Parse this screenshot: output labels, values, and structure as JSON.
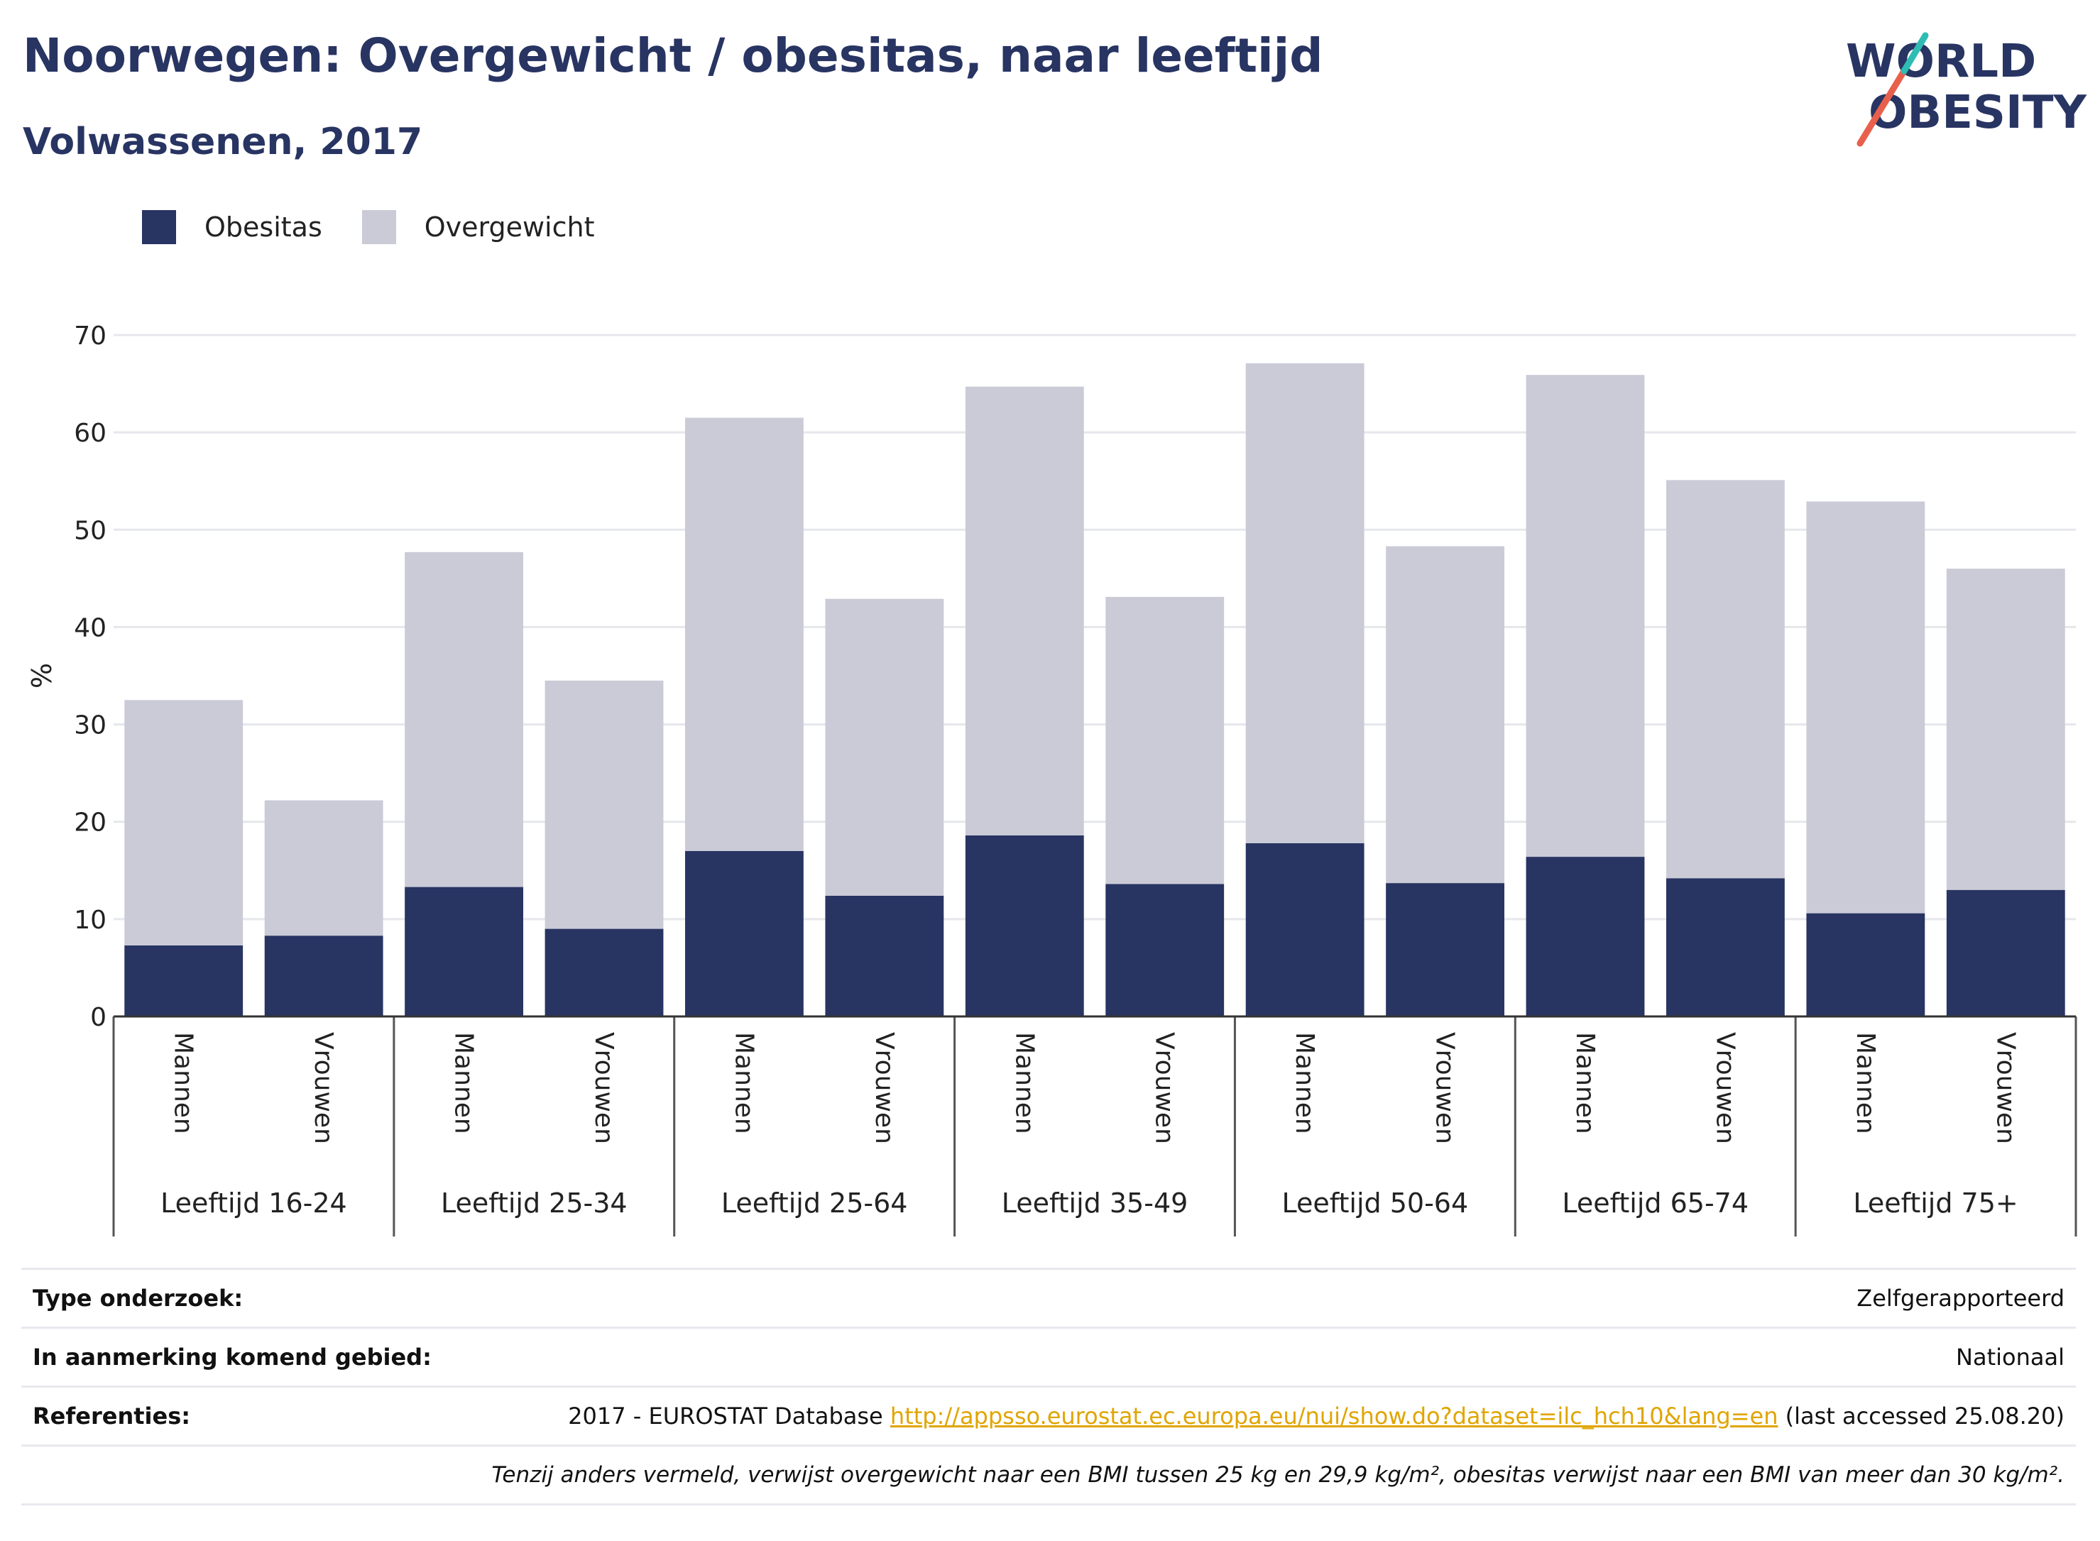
{
  "header": {
    "title": "Noorwegen: Overgewicht / obesitas, naar leeftijd",
    "subtitle": "Volwassenen, 2017"
  },
  "logo": {
    "line1": "WORLD",
    "line2": "OBESITY"
  },
  "legend": [
    {
      "label": "Obesitas",
      "color": "#283462"
    },
    {
      "label": "Overgewicht",
      "color": "#cacbd6"
    }
  ],
  "chart_data": {
    "type": "bar",
    "stacked": true,
    "ylabel": "%",
    "ylim": [
      0,
      70
    ],
    "yticks": [
      0,
      10,
      20,
      30,
      40,
      50,
      60,
      70
    ],
    "grid": true,
    "legend_position": "top-left",
    "groups": [
      "Leeftijd 16-24",
      "Leeftijd 25-34",
      "Leeftijd 25-64",
      "Leeftijd 35-49",
      "Leeftijd 50-64",
      "Leeftijd 65-74",
      "Leeftijd 75+"
    ],
    "subcategories": [
      "Mannen",
      "Vrouwen"
    ],
    "series": [
      {
        "name": "Obesitas",
        "color": "#283462",
        "values": [
          7.3,
          8.3,
          13.3,
          9.0,
          17.0,
          12.4,
          18.6,
          13.6,
          17.8,
          13.7,
          16.4,
          14.2,
          10.6,
          13.0
        ]
      },
      {
        "name": "Overgewicht",
        "color": "#cacbd6",
        "values": [
          25.2,
          13.9,
          34.4,
          25.5,
          44.5,
          30.5,
          46.1,
          29.5,
          49.3,
          34.6,
          49.5,
          40.9,
          42.3,
          33.0
        ]
      }
    ]
  },
  "footer": {
    "rows": [
      {
        "label": "Type onderzoek:",
        "value": "Zelfgerapporteerd"
      },
      {
        "label": "In aanmerking komend gebied:",
        "value": "Nationaal"
      },
      {
        "label": "Referenties:",
        "value_prefix": "2017 - EUROSTAT Database ",
        "link": "http://appsso.eurostat.ec.europa.eu/nui/show.do?dataset=ilc_hch10&lang=en",
        "value_suffix": " (last accessed 25.08.20)"
      }
    ],
    "note": "Tenzij anders vermeld, verwijst overgewicht naar een BMI tussen 25 kg en 29,9 kg/m², obesitas verwijst naar een BMI van meer dan 30 kg/m²."
  }
}
